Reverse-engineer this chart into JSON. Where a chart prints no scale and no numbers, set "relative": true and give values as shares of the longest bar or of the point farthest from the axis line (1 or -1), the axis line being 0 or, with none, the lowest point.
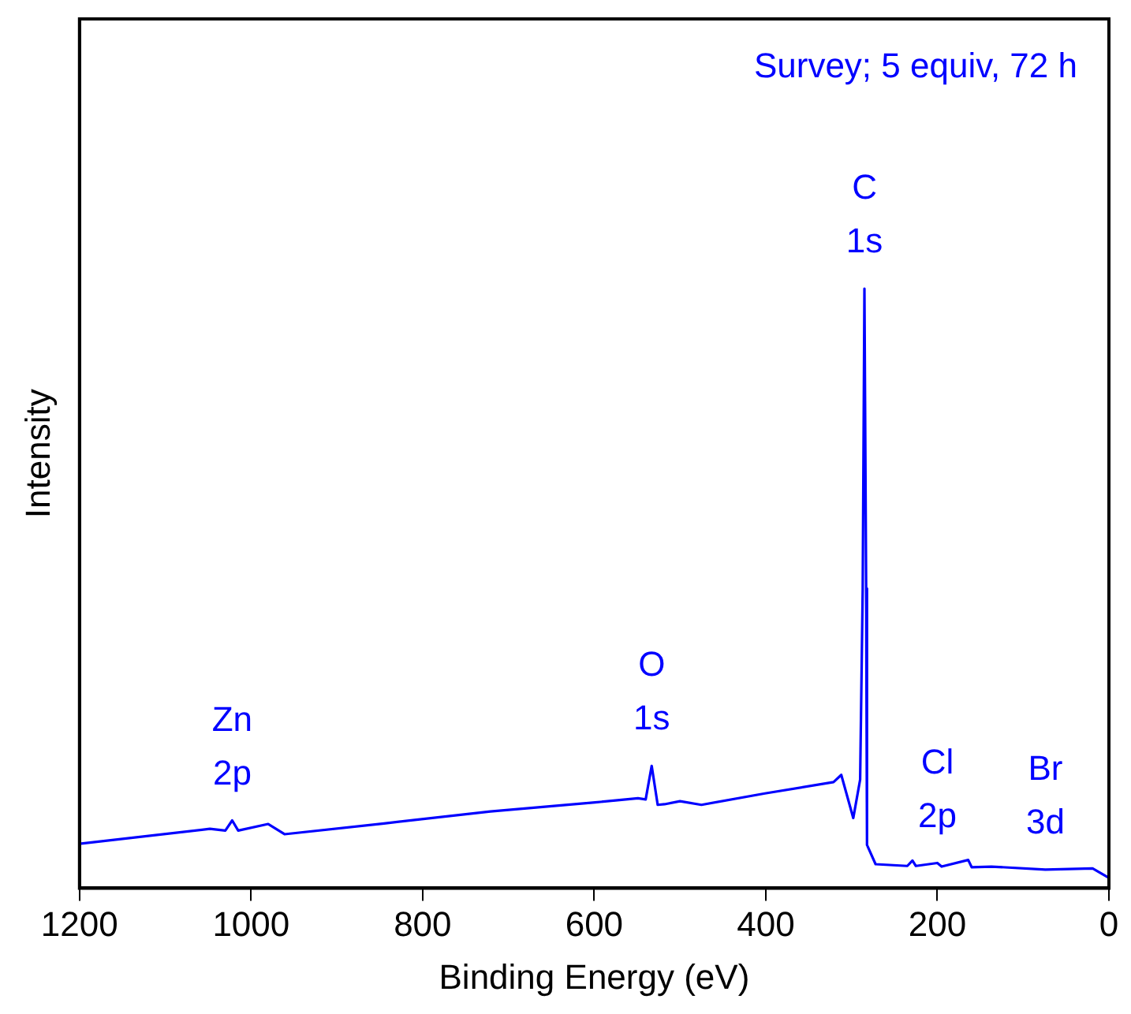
{
  "chart_data": {
    "type": "line",
    "xlabel": "Binding Energy (eV)",
    "ylabel": "Intensity",
    "relative": true,
    "xlim": [
      1200,
      0
    ],
    "xticks": [
      1200,
      1000,
      800,
      600,
      400,
      200,
      0
    ],
    "legend": false,
    "grid": false,
    "marker": "none",
    "line_style": "solid",
    "x": [
      1200,
      1048,
      1030,
      1022,
      1015,
      980,
      961,
      845,
      721,
      599,
      549,
      540,
      533,
      526,
      518,
      500,
      475,
      401,
      321,
      312,
      298,
      290,
      287,
      285,
      283,
      282,
      272,
      235,
      229,
      225,
      200,
      195,
      164,
      160,
      137,
      74,
      19,
      0
    ],
    "series": [
      {
        "color": "#0000ff",
        "values": [
          0.074,
          0.099,
          0.096,
          0.113,
          0.096,
          0.107,
          0.09,
          0.108,
          0.128,
          0.143,
          0.15,
          0.148,
          0.204,
          0.139,
          0.14,
          0.145,
          0.139,
          0.158,
          0.177,
          0.189,
          0.117,
          0.181,
          0.5,
          1.0,
          0.5,
          0.072,
          0.04,
          0.037,
          0.046,
          0.037,
          0.042,
          0.036,
          0.047,
          0.035,
          0.036,
          0.031,
          0.033,
          0.017
        ]
      }
    ],
    "annotations": [
      "Survey; 5 equiv, 72 h",
      {
        "text": "Zn 2p",
        "x": 1022,
        "y": 0.113
      },
      {
        "text": "O 1s",
        "x": 533,
        "y": 0.204
      },
      {
        "text": "C 1s",
        "x": 285,
        "y": 1.0
      },
      {
        "text": "Cl 2p",
        "x": 200,
        "y": 0.042
      },
      {
        "text": "Br 3d",
        "x": 74,
        "y": 0.031
      }
    ]
  }
}
